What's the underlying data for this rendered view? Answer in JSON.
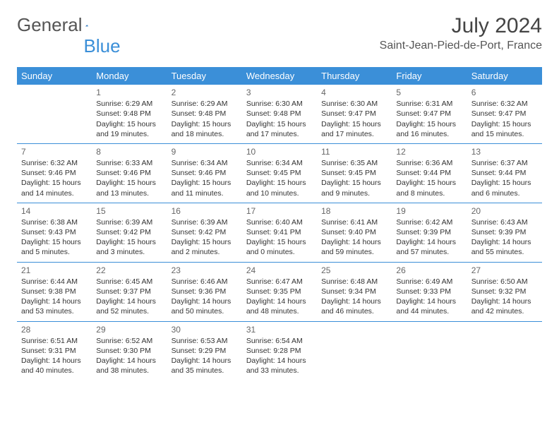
{
  "logo": {
    "part1": "General",
    "part2": "Blue"
  },
  "title": "July 2024",
  "location": "Saint-Jean-Pied-de-Port, France",
  "colors": {
    "header_bg": "#3b8fd8",
    "header_text": "#ffffff",
    "rule": "#3b8fd8",
    "text": "#333333",
    "title_text": "#444444"
  },
  "weekdays": [
    "Sunday",
    "Monday",
    "Tuesday",
    "Wednesday",
    "Thursday",
    "Friday",
    "Saturday"
  ],
  "weeks": [
    [
      null,
      {
        "n": "1",
        "sr": "Sunrise: 6:29 AM",
        "ss": "Sunset: 9:48 PM",
        "dl": "Daylight: 15 hours and 19 minutes."
      },
      {
        "n": "2",
        "sr": "Sunrise: 6:29 AM",
        "ss": "Sunset: 9:48 PM",
        "dl": "Daylight: 15 hours and 18 minutes."
      },
      {
        "n": "3",
        "sr": "Sunrise: 6:30 AM",
        "ss": "Sunset: 9:48 PM",
        "dl": "Daylight: 15 hours and 17 minutes."
      },
      {
        "n": "4",
        "sr": "Sunrise: 6:30 AM",
        "ss": "Sunset: 9:47 PM",
        "dl": "Daylight: 15 hours and 17 minutes."
      },
      {
        "n": "5",
        "sr": "Sunrise: 6:31 AM",
        "ss": "Sunset: 9:47 PM",
        "dl": "Daylight: 15 hours and 16 minutes."
      },
      {
        "n": "6",
        "sr": "Sunrise: 6:32 AM",
        "ss": "Sunset: 9:47 PM",
        "dl": "Daylight: 15 hours and 15 minutes."
      }
    ],
    [
      {
        "n": "7",
        "sr": "Sunrise: 6:32 AM",
        "ss": "Sunset: 9:46 PM",
        "dl": "Daylight: 15 hours and 14 minutes."
      },
      {
        "n": "8",
        "sr": "Sunrise: 6:33 AM",
        "ss": "Sunset: 9:46 PM",
        "dl": "Daylight: 15 hours and 13 minutes."
      },
      {
        "n": "9",
        "sr": "Sunrise: 6:34 AM",
        "ss": "Sunset: 9:46 PM",
        "dl": "Daylight: 15 hours and 11 minutes."
      },
      {
        "n": "10",
        "sr": "Sunrise: 6:34 AM",
        "ss": "Sunset: 9:45 PM",
        "dl": "Daylight: 15 hours and 10 minutes."
      },
      {
        "n": "11",
        "sr": "Sunrise: 6:35 AM",
        "ss": "Sunset: 9:45 PM",
        "dl": "Daylight: 15 hours and 9 minutes."
      },
      {
        "n": "12",
        "sr": "Sunrise: 6:36 AM",
        "ss": "Sunset: 9:44 PM",
        "dl": "Daylight: 15 hours and 8 minutes."
      },
      {
        "n": "13",
        "sr": "Sunrise: 6:37 AM",
        "ss": "Sunset: 9:44 PM",
        "dl": "Daylight: 15 hours and 6 minutes."
      }
    ],
    [
      {
        "n": "14",
        "sr": "Sunrise: 6:38 AM",
        "ss": "Sunset: 9:43 PM",
        "dl": "Daylight: 15 hours and 5 minutes."
      },
      {
        "n": "15",
        "sr": "Sunrise: 6:39 AM",
        "ss": "Sunset: 9:42 PM",
        "dl": "Daylight: 15 hours and 3 minutes."
      },
      {
        "n": "16",
        "sr": "Sunrise: 6:39 AM",
        "ss": "Sunset: 9:42 PM",
        "dl": "Daylight: 15 hours and 2 minutes."
      },
      {
        "n": "17",
        "sr": "Sunrise: 6:40 AM",
        "ss": "Sunset: 9:41 PM",
        "dl": "Daylight: 15 hours and 0 minutes."
      },
      {
        "n": "18",
        "sr": "Sunrise: 6:41 AM",
        "ss": "Sunset: 9:40 PM",
        "dl": "Daylight: 14 hours and 59 minutes."
      },
      {
        "n": "19",
        "sr": "Sunrise: 6:42 AM",
        "ss": "Sunset: 9:39 PM",
        "dl": "Daylight: 14 hours and 57 minutes."
      },
      {
        "n": "20",
        "sr": "Sunrise: 6:43 AM",
        "ss": "Sunset: 9:39 PM",
        "dl": "Daylight: 14 hours and 55 minutes."
      }
    ],
    [
      {
        "n": "21",
        "sr": "Sunrise: 6:44 AM",
        "ss": "Sunset: 9:38 PM",
        "dl": "Daylight: 14 hours and 53 minutes."
      },
      {
        "n": "22",
        "sr": "Sunrise: 6:45 AM",
        "ss": "Sunset: 9:37 PM",
        "dl": "Daylight: 14 hours and 52 minutes."
      },
      {
        "n": "23",
        "sr": "Sunrise: 6:46 AM",
        "ss": "Sunset: 9:36 PM",
        "dl": "Daylight: 14 hours and 50 minutes."
      },
      {
        "n": "24",
        "sr": "Sunrise: 6:47 AM",
        "ss": "Sunset: 9:35 PM",
        "dl": "Daylight: 14 hours and 48 minutes."
      },
      {
        "n": "25",
        "sr": "Sunrise: 6:48 AM",
        "ss": "Sunset: 9:34 PM",
        "dl": "Daylight: 14 hours and 46 minutes."
      },
      {
        "n": "26",
        "sr": "Sunrise: 6:49 AM",
        "ss": "Sunset: 9:33 PM",
        "dl": "Daylight: 14 hours and 44 minutes."
      },
      {
        "n": "27",
        "sr": "Sunrise: 6:50 AM",
        "ss": "Sunset: 9:32 PM",
        "dl": "Daylight: 14 hours and 42 minutes."
      }
    ],
    [
      {
        "n": "28",
        "sr": "Sunrise: 6:51 AM",
        "ss": "Sunset: 9:31 PM",
        "dl": "Daylight: 14 hours and 40 minutes."
      },
      {
        "n": "29",
        "sr": "Sunrise: 6:52 AM",
        "ss": "Sunset: 9:30 PM",
        "dl": "Daylight: 14 hours and 38 minutes."
      },
      {
        "n": "30",
        "sr": "Sunrise: 6:53 AM",
        "ss": "Sunset: 9:29 PM",
        "dl": "Daylight: 14 hours and 35 minutes."
      },
      {
        "n": "31",
        "sr": "Sunrise: 6:54 AM",
        "ss": "Sunset: 9:28 PM",
        "dl": "Daylight: 14 hours and 33 minutes."
      },
      null,
      null,
      null
    ]
  ]
}
